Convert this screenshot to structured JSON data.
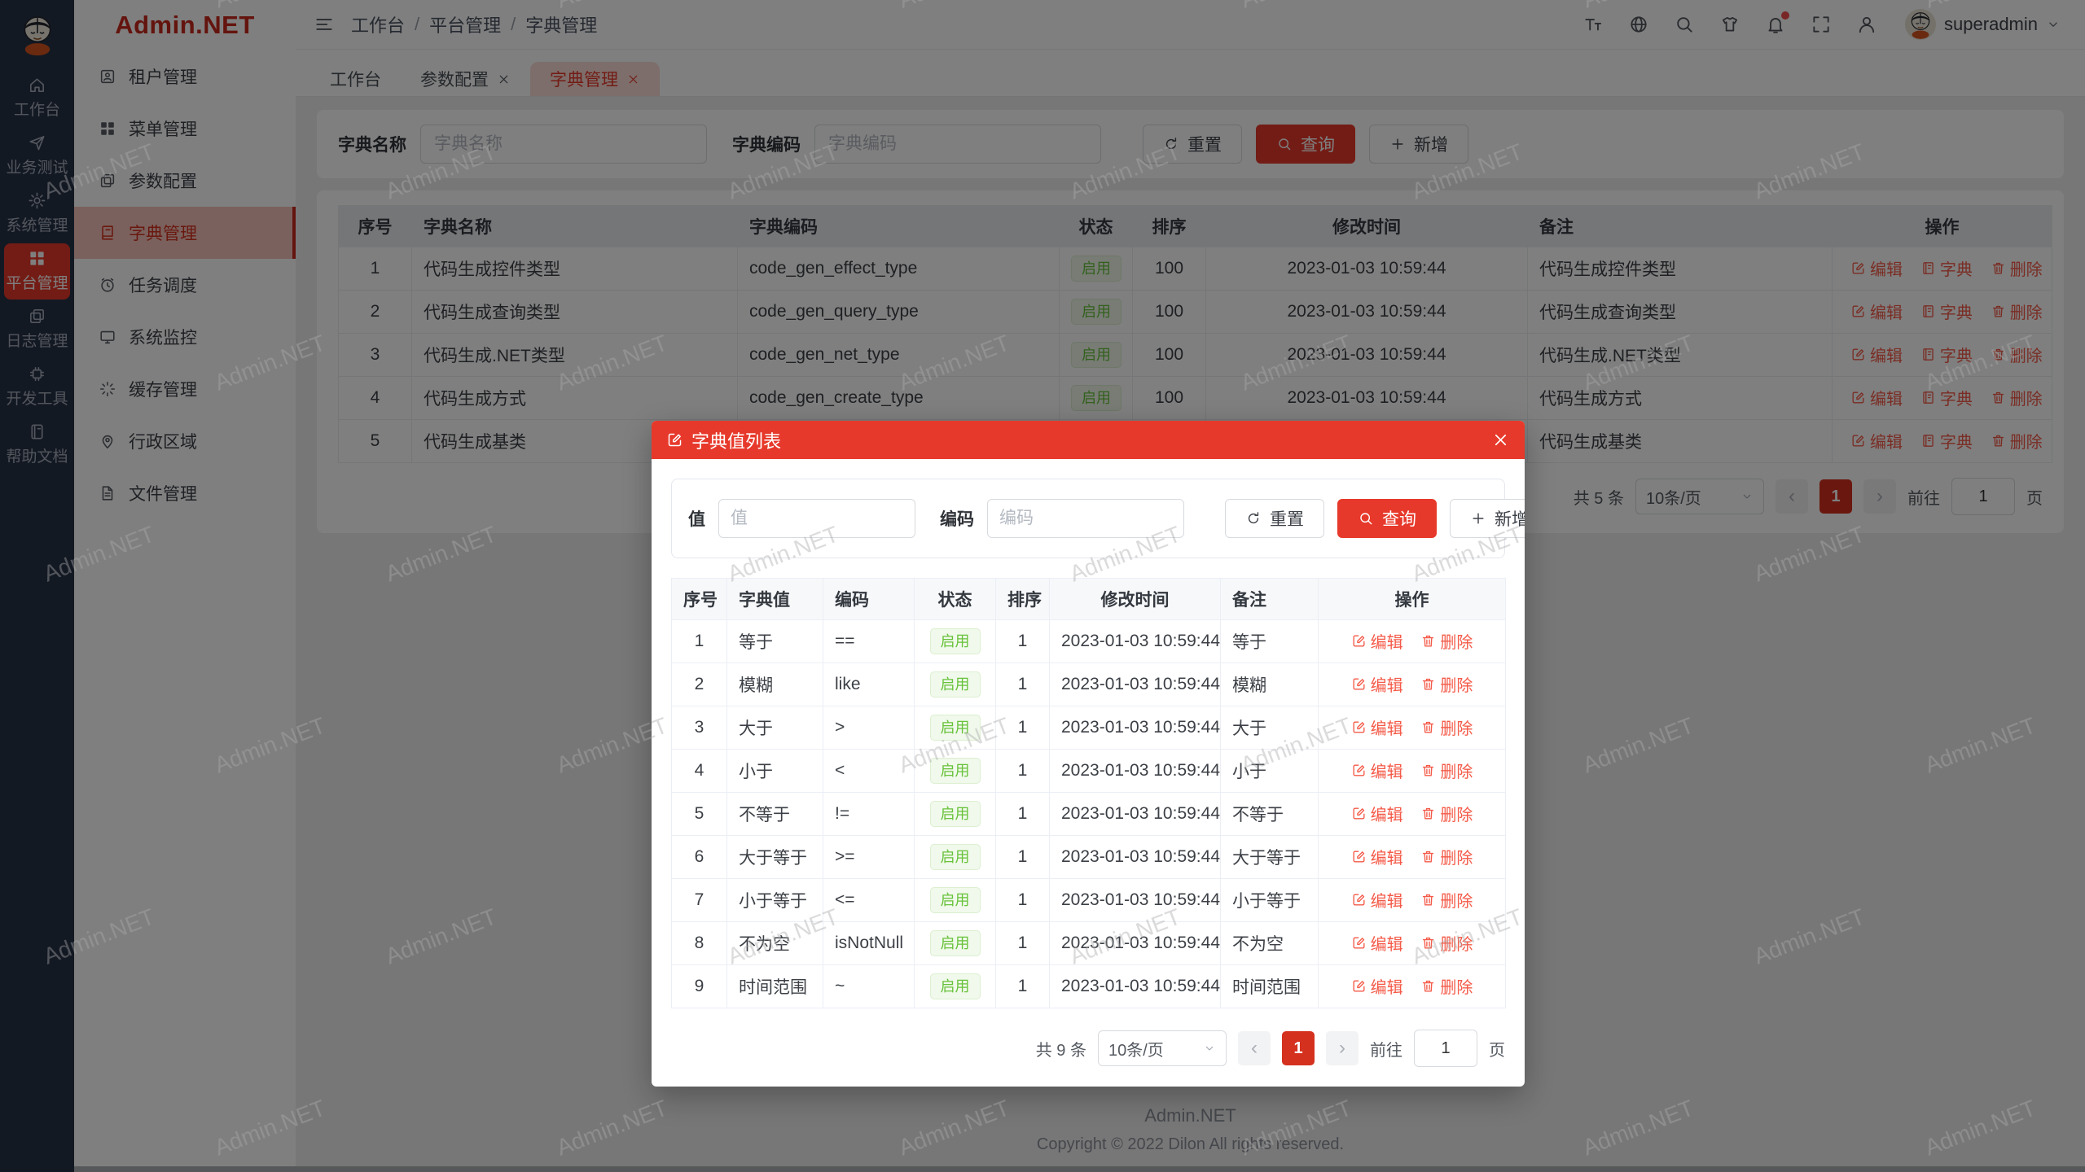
{
  "watermark": {
    "text": "Admin.NET"
  },
  "rail": {
    "items": [
      {
        "key": "workbench",
        "icon": "home",
        "label": "工作台"
      },
      {
        "key": "business-test",
        "icon": "send",
        "label": "业务测试"
      },
      {
        "key": "system-manage",
        "icon": "gear",
        "label": "系统管理"
      },
      {
        "key": "platform-manage",
        "icon": "grid",
        "label": "平台管理",
        "active": true
      },
      {
        "key": "log-manage",
        "icon": "copy",
        "label": "日志管理"
      },
      {
        "key": "dev-tools",
        "icon": "chip",
        "label": "开发工具"
      },
      {
        "key": "help-docs",
        "icon": "book",
        "label": "帮助文档"
      }
    ]
  },
  "sidebar": {
    "logo": "Admin.NET",
    "items": [
      {
        "key": "tenant-manage",
        "icon": "tenant",
        "label": "租户管理"
      },
      {
        "key": "menu-manage",
        "icon": "grid",
        "label": "菜单管理"
      },
      {
        "key": "param-config",
        "icon": "copy",
        "label": "参数配置"
      },
      {
        "key": "dict-manage",
        "icon": "dict",
        "label": "字典管理",
        "active": true
      },
      {
        "key": "task-schedule",
        "icon": "clock",
        "label": "任务调度"
      },
      {
        "key": "system-monitor",
        "icon": "monitor",
        "label": "系统监控"
      },
      {
        "key": "cache-manage",
        "icon": "loading",
        "label": "缓存管理"
      },
      {
        "key": "admin-region",
        "icon": "pin",
        "label": "行政区域"
      },
      {
        "key": "file-manage",
        "icon": "file",
        "label": "文件管理"
      }
    ]
  },
  "topbar": {
    "breadcrumb": [
      "工作台",
      "平台管理",
      "字典管理"
    ],
    "separator": "/",
    "username": "superadmin"
  },
  "tabs": [
    {
      "key": "workbench",
      "label": "工作台"
    },
    {
      "key": "param-config",
      "label": "参数配置",
      "closable": true
    },
    {
      "key": "dict-manage",
      "label": "字典管理",
      "closable": true,
      "active": true
    }
  ],
  "filter": {
    "name_label": "字典名称",
    "name_placeholder": "字典名称",
    "code_label": "字典编码",
    "code_placeholder": "字典编码",
    "reset": "重置",
    "search": "查询",
    "add": "新增"
  },
  "table": {
    "headers": [
      "序号",
      "字典名称",
      "字典编码",
      "状态",
      "排序",
      "修改时间",
      "备注",
      "操作"
    ],
    "actions": {
      "edit": "编辑",
      "dict": "字典",
      "delete": "删除"
    },
    "rows": [
      {
        "idx": "1",
        "name": "代码生成控件类型",
        "code": "code_gen_effect_type",
        "status": "启用",
        "sort": "100",
        "time": "2023-01-03 10:59:44",
        "remark": "代码生成控件类型"
      },
      {
        "idx": "2",
        "name": "代码生成查询类型",
        "code": "code_gen_query_type",
        "status": "启用",
        "sort": "100",
        "time": "2023-01-03 10:59:44",
        "remark": "代码生成查询类型"
      },
      {
        "idx": "3",
        "name": "代码生成.NET类型",
        "code": "code_gen_net_type",
        "status": "启用",
        "sort": "100",
        "time": "2023-01-03 10:59:44",
        "remark": "代码生成.NET类型"
      },
      {
        "idx": "4",
        "name": "代码生成方式",
        "code": "code_gen_create_type",
        "status": "启用",
        "sort": "100",
        "time": "2023-01-03 10:59:44",
        "remark": "代码生成方式"
      },
      {
        "idx": "5",
        "name": "代码生成基类",
        "code": "",
        "status": "",
        "sort": "",
        "time": "",
        "remark": "代码生成基类"
      }
    ]
  },
  "pagination": {
    "total": "共 5 条",
    "per_page": "10条/页",
    "page": "1",
    "goto_label": "前往",
    "goto_value": "1",
    "page_label": "页"
  },
  "modal": {
    "title": "字典值列表",
    "filter": {
      "value_label": "值",
      "value_placeholder": "值",
      "code_label": "编码",
      "code_placeholder": "编码",
      "reset": "重置",
      "search": "查询",
      "add": "新增"
    },
    "table": {
      "headers": [
        "序号",
        "字典值",
        "编码",
        "状态",
        "排序",
        "修改时间",
        "备注",
        "操作"
      ],
      "actions": {
        "edit": "编辑",
        "delete": "删除"
      },
      "rows": [
        {
          "idx": "1",
          "value": "等于",
          "code": "==",
          "status": "启用",
          "sort": "1",
          "time": "2023-01-03 10:59:44",
          "remark": "等于"
        },
        {
          "idx": "2",
          "value": "模糊",
          "code": "like",
          "status": "启用",
          "sort": "1",
          "time": "2023-01-03 10:59:44",
          "remark": "模糊"
        },
        {
          "idx": "3",
          "value": "大于",
          "code": ">",
          "status": "启用",
          "sort": "1",
          "time": "2023-01-03 10:59:44",
          "remark": "大于"
        },
        {
          "idx": "4",
          "value": "小于",
          "code": "<",
          "status": "启用",
          "sort": "1",
          "time": "2023-01-03 10:59:44",
          "remark": "小于"
        },
        {
          "idx": "5",
          "value": "不等于",
          "code": "!=",
          "status": "启用",
          "sort": "1",
          "time": "2023-01-03 10:59:44",
          "remark": "不等于"
        },
        {
          "idx": "6",
          "value": "大于等于",
          "code": ">=",
          "status": "启用",
          "sort": "1",
          "time": "2023-01-03 10:59:44",
          "remark": "大于等于"
        },
        {
          "idx": "7",
          "value": "小于等于",
          "code": "<=",
          "status": "启用",
          "sort": "1",
          "time": "2023-01-03 10:59:44",
          "remark": "小于等于"
        },
        {
          "idx": "8",
          "value": "不为空",
          "code": "isNotNull",
          "status": "启用",
          "sort": "1",
          "time": "2023-01-03 10:59:44",
          "remark": "不为空"
        },
        {
          "idx": "9",
          "value": "时间范围",
          "code": "~",
          "status": "启用",
          "sort": "1",
          "time": "2023-01-03 10:59:44",
          "remark": "时间范围"
        }
      ]
    },
    "pagination": {
      "total": "共 9 条",
      "per_page": "10条/页",
      "page": "1",
      "goto_label": "前往",
      "goto_value": "1",
      "page_label": "页"
    }
  },
  "footer": {
    "brand": "Admin.NET",
    "copyright": "Copyright © 2022 Dilon All rights reserved."
  }
}
